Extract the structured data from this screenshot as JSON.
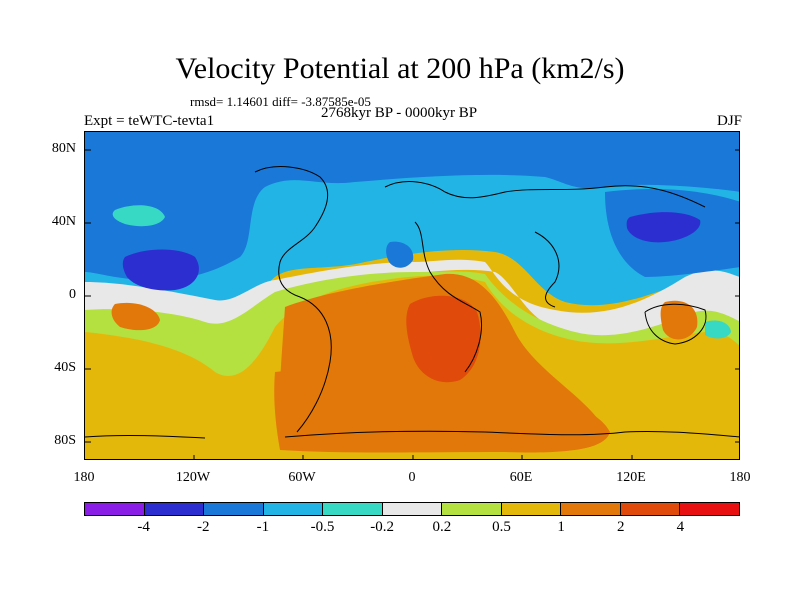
{
  "title": "Velocity Potential at 200 hPa (km2/s)",
  "stats": "rmsd= 1.14601 diff= -3.87585e-05",
  "period": "2768kyr BP - 0000kyr BP",
  "experiment": "Expt = teWTC-tevta1",
  "season": "DJF",
  "y_labels": [
    "80N",
    "40N",
    "0",
    "40S",
    "80S"
  ],
  "x_labels": [
    "180",
    "120W",
    "60W",
    "0",
    "60E",
    "120E",
    "180"
  ],
  "colorbar": {
    "levels": [
      "-4",
      "-2",
      "-1",
      "-0.5",
      "-0.2",
      "0.2",
      "0.5",
      "1",
      "2",
      "4"
    ],
    "colors": [
      "#8a1ee6",
      "#2d2ed0",
      "#1a78d8",
      "#23b4e6",
      "#38d9c4",
      "#e8e8e8",
      "#b4e040",
      "#e4b80a",
      "#e2780a",
      "#e04a0a",
      "#e81010"
    ]
  }
}
